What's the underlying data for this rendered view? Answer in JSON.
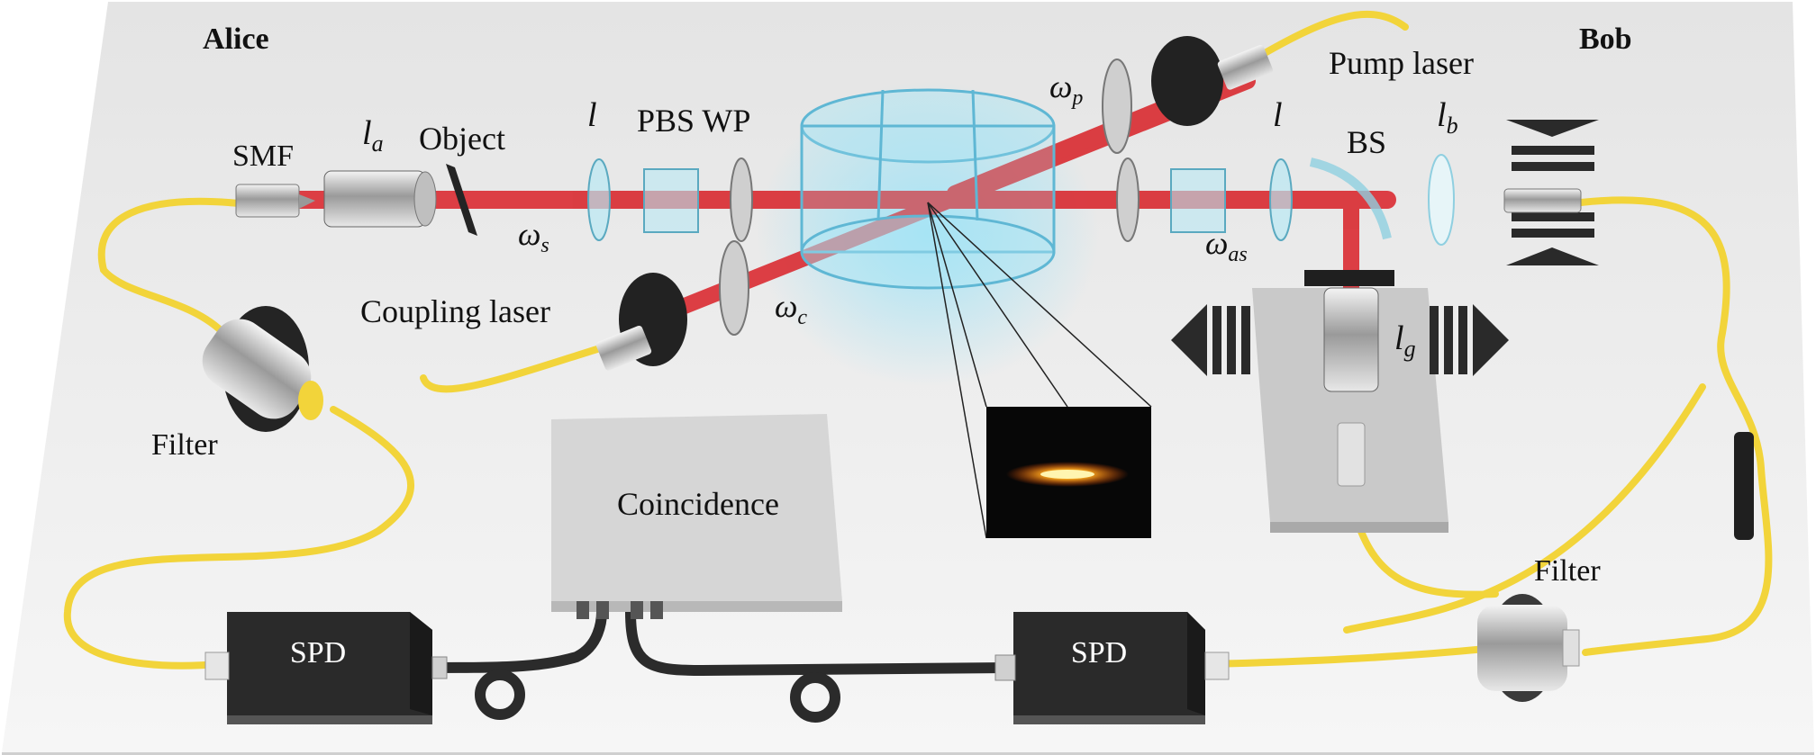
{
  "parties": {
    "alice": "Alice",
    "bob": "Bob"
  },
  "labels": {
    "smf": "SMF",
    "object": "Object",
    "pbs_wp": "PBS WP",
    "bs": "BS",
    "pump_laser": "Pump laser",
    "coupling_laser": "Coupling laser",
    "filter_left": "Filter",
    "filter_right": "Filter",
    "coincidence": "Coincidence",
    "spd_left": "SPD",
    "spd_right": "SPD"
  },
  "symbols": {
    "la": {
      "base": "l",
      "sub": "a"
    },
    "l_left": {
      "base": "l"
    },
    "l_right": {
      "base": "l"
    },
    "lb": {
      "base": "l",
      "sub": "b"
    },
    "lg": {
      "base": "l",
      "sub": "g"
    },
    "ws": {
      "base": "ω",
      "sub": "s"
    },
    "wp": {
      "base": "ω",
      "sub": "p"
    },
    "wc": {
      "base": "ω",
      "sub": "c"
    },
    "was": {
      "base": "ω",
      "sub": "as"
    }
  },
  "colors": {
    "beam": "#d9262c",
    "fiber": "#f2d43a",
    "cable": "#2b2b2b",
    "device_dark": "#2a2a2a",
    "cloud": "#8fd6ec",
    "table": "#ececec"
  }
}
